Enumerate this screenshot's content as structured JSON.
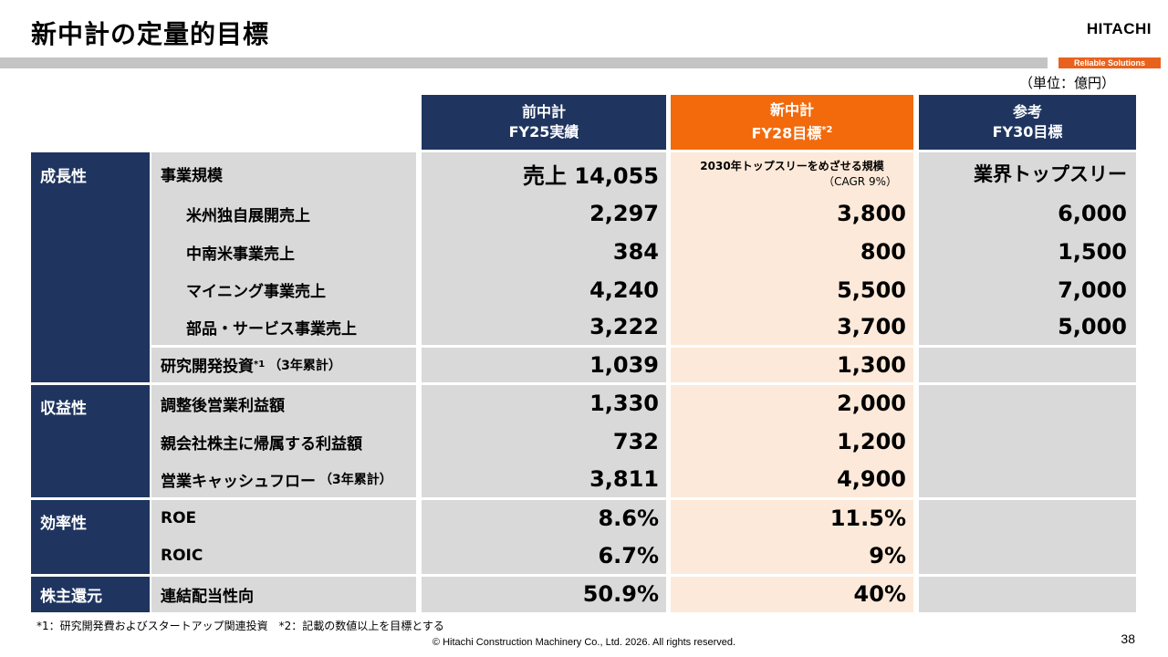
{
  "title": "新中計の定量的目標",
  "logo": "HITACHI",
  "tagline": "Reliable Solutions",
  "unit": "（単位：億円）",
  "headers": [
    {
      "line1": "前中計",
      "line2": "FY25実績",
      "sup": ""
    },
    {
      "line1": "新中計",
      "line2": "FY28目標",
      "sup": "*2"
    },
    {
      "line1": "参考",
      "line2": "FY30目標",
      "sup": ""
    }
  ],
  "sections": {
    "growth": "成長性",
    "profit": "収益性",
    "efficiency": "効率性",
    "return": "株主還元"
  },
  "rows": [
    {
      "label": "事業規模",
      "c1": "売上 14,055",
      "c2_line1": "2030年トップスリーをめざせる規模",
      "c2_line2": "（CAGR 9%）",
      "c3": "業界トップスリー"
    },
    {
      "label": "米州独自展開売上",
      "c1": "2,297",
      "c2": "3,800",
      "c3": "6,000"
    },
    {
      "label": "中南米事業売上",
      "c1": "384",
      "c2": "800",
      "c3": "1,500"
    },
    {
      "label": "マイニング事業売上",
      "c1": "4,240",
      "c2": "5,500",
      "c3": "7,000"
    },
    {
      "label": "部品・サービス事業売上",
      "c1": "3,222",
      "c2": "3,700",
      "c3": "5,000"
    },
    {
      "label": "研究開発投資",
      "label_sup": "*1",
      "label_small": "（3年累計）",
      "c1": "1,039",
      "c2": "1,300",
      "c3": ""
    },
    {
      "label": "調整後営業利益額",
      "c1": "1,330",
      "c2": "2,000",
      "c3": ""
    },
    {
      "label": "親会社株主に帰属する利益額",
      "c1": "732",
      "c2": "1,200",
      "c3": ""
    },
    {
      "label": "営業キャッシュフロー",
      "label_small": "（3年累計）",
      "c1": "3,811",
      "c2": "4,900",
      "c3": ""
    },
    {
      "label": "ROE",
      "c1": "8.6%",
      "c2": "11.5%",
      "c3": ""
    },
    {
      "label": "ROIC",
      "c1": "6.7%",
      "c2": "9%",
      "c3": ""
    },
    {
      "label": "連結配当性向",
      "c1": "50.9%",
      "c2": "40%",
      "c3": ""
    }
  ],
  "footnote": "*1：研究開発費およびスタートアップ関連投資　*2：記載の数値以上を目標とする",
  "copyright": "© Hitachi Construction Machinery Co., Ltd. 2026. All rights reserved.",
  "page_number": "38"
}
